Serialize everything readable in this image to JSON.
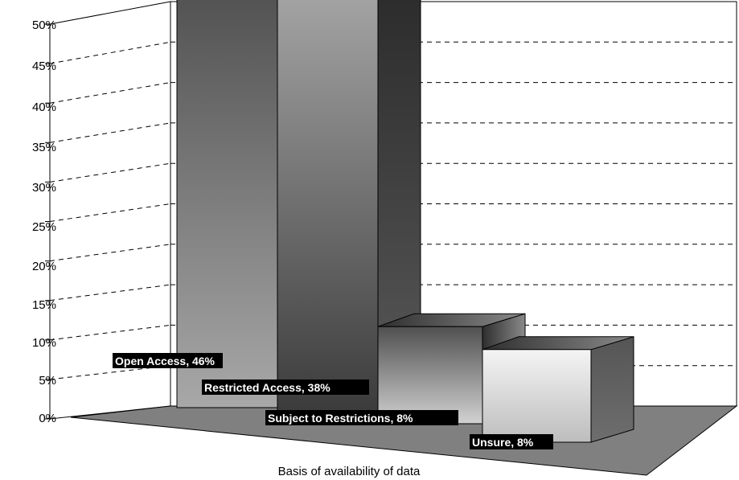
{
  "chart_data": {
    "type": "bar",
    "title": "",
    "xlabel": "Basis of availability of data",
    "ylabel": "",
    "categories": [
      "Open Access",
      "Restricted Access",
      "Subject to Restrictions",
      "Unsure"
    ],
    "values": [
      46,
      38,
      8,
      8
    ],
    "data_labels": [
      "Open Access, 46%",
      "Restricted Access, 38%",
      "Subject to Restrictions, 8%",
      "Unsure, 8%"
    ],
    "y_ticks": [
      "0%",
      "5%",
      "10%",
      "15%",
      "20%",
      "25%",
      "30%",
      "35%",
      "40%",
      "45%",
      "50%"
    ],
    "ylim": [
      0,
      50
    ],
    "grid": true,
    "style": "3d-column"
  }
}
